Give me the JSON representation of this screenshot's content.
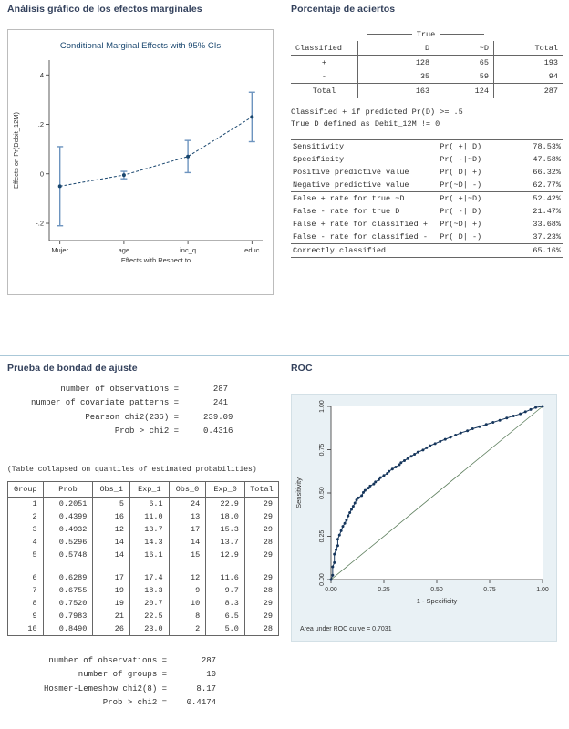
{
  "page": {
    "bg": "#ffffff",
    "divider_color": "#aac8d8",
    "title_color": "#33415c"
  },
  "sections": {
    "marginal_title": "Análisis gráfico de los efectos marginales",
    "classification_title": "Porcentaje de aciertos",
    "gof_title": "Prueba de bondad de ajuste",
    "roc_title": "ROC"
  },
  "classification": {
    "true_header": "True",
    "headers": [
      "Classified",
      "D",
      "~D",
      "Total"
    ],
    "matrix_rows": [
      [
        "+",
        "128",
        "65",
        "193"
      ],
      [
        "-",
        "35",
        "59",
        "94"
      ]
    ],
    "total_row": [
      [
        "Total",
        "163",
        "124",
        "287"
      ]
    ],
    "notes": [
      "Classified + if predicted Pr(D) >= .5",
      "True D defined as Debit_12M != 0"
    ],
    "stats_block1": [
      [
        "Sensitivity",
        "Pr( +| D)",
        "78.53%"
      ],
      [
        "Specificity",
        "Pr( -|~D)",
        "47.58%"
      ],
      [
        "Positive predictive value",
        "Pr( D| +)",
        "66.32%"
      ],
      [
        "Negative predictive value",
        "Pr(~D| -)",
        "62.77%"
      ]
    ],
    "stats_block2": [
      [
        "False + rate for true ~D",
        "Pr( +|~D)",
        "52.42%"
      ],
      [
        "False - rate for true D",
        "Pr( -| D)",
        "21.47%"
      ],
      [
        "False + rate for classified +",
        "Pr(~D| +)",
        "33.68%"
      ],
      [
        "False - rate for classified -",
        "Pr( D| -)",
        "37.23%"
      ]
    ],
    "stats_block3": [
      [
        "Correctly classified",
        "",
        "65.16%"
      ]
    ]
  },
  "gof": {
    "summary": "      number of observations =       287\nnumber of covariate patterns =       241\n           Pearson chi2(236) =     239.09\n                 Prob > chi2 =     0.4316",
    "caption": "(Table collapsed on quantiles of estimated probabilities)",
    "table_headers": [
      "Group",
      "Prob",
      "Obs_1",
      "Exp_1",
      "Obs_0",
      "Exp_0",
      "Total"
    ],
    "rows_a": [
      [
        "1",
        "0.2051",
        "5",
        "6.1",
        "24",
        "22.9",
        "29"
      ],
      [
        "2",
        "0.4399",
        "16",
        "11.0",
        "13",
        "18.0",
        "29"
      ],
      [
        "3",
        "0.4932",
        "12",
        "13.7",
        "17",
        "15.3",
        "29"
      ],
      [
        "4",
        "0.5296",
        "14",
        "14.3",
        "14",
        "13.7",
        "28"
      ],
      [
        "5",
        "0.5748",
        "14",
        "16.1",
        "15",
        "12.9",
        "29"
      ]
    ],
    "rows_b": [
      [
        "6",
        "0.6289",
        "17",
        "17.4",
        "12",
        "11.6",
        "29"
      ],
      [
        "7",
        "0.6755",
        "19",
        "18.3",
        "9",
        "9.7",
        "28"
      ],
      [
        "8",
        "0.7520",
        "19",
        "20.7",
        "10",
        "8.3",
        "29"
      ],
      [
        "9",
        "0.7983",
        "21",
        "22.5",
        "8",
        "6.5",
        "29"
      ],
      [
        "10",
        "0.8490",
        "26",
        "23.0",
        "2",
        "5.0",
        "28"
      ]
    ],
    "hl_summary": " number of observations =       287\n       number of groups =        10\nHosmer-Lemeshow chi2(8) =      8.17\n            Prob > chi2 =    0.4174"
  },
  "chart_data": [
    {
      "type": "line",
      "title": "Conditional Marginal Effects with 95% CIs",
      "xlabel": "Effects with Respect to",
      "ylabel": "Effects on Pr(Debit_12M)",
      "categories": [
        "Mujer",
        "age",
        "inc_q",
        "educ"
      ],
      "effects": [
        -0.05,
        -0.005,
        0.07,
        0.23
      ],
      "ci_low": [
        -0.21,
        -0.02,
        0.005,
        0.13
      ],
      "ci_high": [
        0.11,
        0.01,
        0.135,
        0.33
      ],
      "yticks": [
        -0.2,
        0,
        0.2,
        0.4
      ],
      "ytick_labels": [
        "-.2",
        "0",
        ".2",
        ".4"
      ],
      "ylim": [
        -0.27,
        0.46
      ],
      "line_color": "#1a476f",
      "ci_color": "#6d94bf",
      "grid": false,
      "legend": "none"
    },
    {
      "type": "line",
      "title": "",
      "xlabel": "1 - Specificity",
      "ylabel": "Sensitivity",
      "xticks": [
        0,
        0.25,
        0.5,
        0.75,
        1
      ],
      "tick_labels": [
        "0.00",
        "0.25",
        "0.50",
        "0.75",
        "1.00"
      ],
      "xlim": [
        0,
        1
      ],
      "ylim": [
        0,
        1
      ],
      "note": "Area under ROC curve = 0.7031",
      "auc": 0.7031,
      "curve_color": "#16365c",
      "ref_color": "#5e7f5e",
      "bg": "#e9f1f5",
      "grid": false,
      "legend": "none",
      "points": [
        [
          0,
          0
        ],
        [
          0.008,
          0.025
        ],
        [
          0.008,
          0.074
        ],
        [
          0.016,
          0.098
        ],
        [
          0.016,
          0.147
        ],
        [
          0.024,
          0.172
        ],
        [
          0.032,
          0.196
        ],
        [
          0.032,
          0.233
        ],
        [
          0.04,
          0.257
        ],
        [
          0.048,
          0.282
        ],
        [
          0.056,
          0.307
        ],
        [
          0.065,
          0.325
        ],
        [
          0.073,
          0.344
        ],
        [
          0.081,
          0.368
        ],
        [
          0.089,
          0.387
        ],
        [
          0.097,
          0.405
        ],
        [
          0.105,
          0.423
        ],
        [
          0.113,
          0.442
        ],
        [
          0.121,
          0.46
        ],
        [
          0.129,
          0.472
        ],
        [
          0.145,
          0.485
        ],
        [
          0.153,
          0.503
        ],
        [
          0.161,
          0.515
        ],
        [
          0.177,
          0.528
        ],
        [
          0.185,
          0.54
        ],
        [
          0.202,
          0.552
        ],
        [
          0.21,
          0.564
        ],
        [
          0.226,
          0.577
        ],
        [
          0.234,
          0.589
        ],
        [
          0.25,
          0.601
        ],
        [
          0.266,
          0.613
        ],
        [
          0.274,
          0.625
        ],
        [
          0.29,
          0.638
        ],
        [
          0.306,
          0.65
        ],
        [
          0.323,
          0.663
        ],
        [
          0.331,
          0.675
        ],
        [
          0.347,
          0.687
        ],
        [
          0.363,
          0.699
        ],
        [
          0.379,
          0.712
        ],
        [
          0.395,
          0.724
        ],
        [
          0.411,
          0.736
        ],
        [
          0.435,
          0.748
        ],
        [
          0.452,
          0.761
        ],
        [
          0.468,
          0.773
        ],
        [
          0.492,
          0.785
        ],
        [
          0.516,
          0.798
        ],
        [
          0.54,
          0.81
        ],
        [
          0.565,
          0.822
        ],
        [
          0.589,
          0.834
        ],
        [
          0.613,
          0.847
        ],
        [
          0.645,
          0.859
        ],
        [
          0.669,
          0.871
        ],
        [
          0.702,
          0.883
        ],
        [
          0.734,
          0.896
        ],
        [
          0.766,
          0.908
        ],
        [
          0.798,
          0.92
        ],
        [
          0.831,
          0.933
        ],
        [
          0.863,
          0.945
        ],
        [
          0.895,
          0.957
        ],
        [
          0.919,
          0.969
        ],
        [
          0.944,
          0.982
        ],
        [
          0.968,
          0.994
        ],
        [
          1,
          1
        ]
      ]
    }
  ]
}
